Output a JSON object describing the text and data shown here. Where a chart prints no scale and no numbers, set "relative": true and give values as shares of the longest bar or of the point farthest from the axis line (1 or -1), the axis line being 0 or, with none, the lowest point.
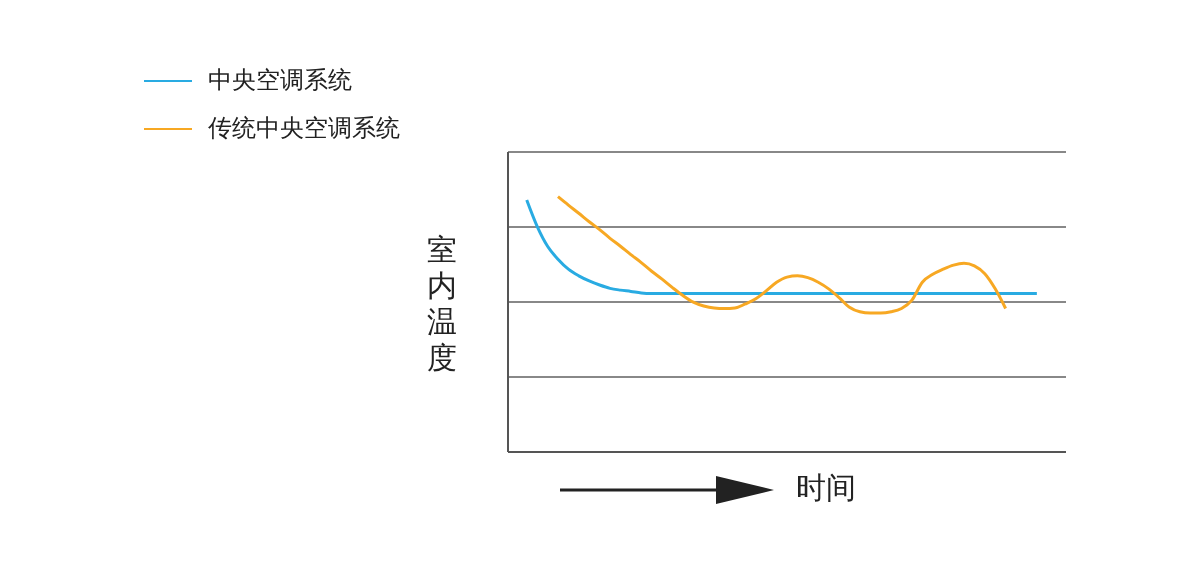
{
  "chart_data": {
    "type": "line",
    "relative": true,
    "xlabel": "时间",
    "ylabel": "室内温度",
    "legend": "top left",
    "grid": "y",
    "marker": "none",
    "categories": [
      null,
      null,
      null,
      null,
      null,
      null,
      null,
      null,
      null,
      null,
      null,
      null,
      null,
      null,
      null,
      null,
      null,
      null,
      null,
      null,
      null,
      null,
      null,
      null,
      null,
      null,
      null,
      null,
      null,
      null,
      null,
      null,
      null,
      null,
      null,
      null,
      null,
      null,
      null,
      null,
      null,
      null,
      null,
      null,
      null,
      null,
      null,
      null,
      null,
      null
    ],
    "series": [
      {
        "name": "中央空调系统",
        "color": "#29abe2",
        "values": [
          0.987,
          0.884,
          0.806,
          0.755,
          0.716,
          0.69,
          0.67,
          0.654,
          0.641,
          0.634,
          0.629,
          0.623,
          0.621,
          0.621,
          0.621,
          0.621,
          0.621,
          0.621,
          0.621,
          0.621,
          0.621,
          0.621,
          0.621,
          0.621,
          0.621,
          0.621,
          0.621,
          0.621,
          0.621,
          0.621,
          0.621,
          0.621,
          0.621,
          0.621,
          0.621,
          0.621,
          0.621,
          0.621,
          0.621,
          0.621,
          0.621,
          0.621,
          0.621,
          0.621,
          0.621,
          0.621,
          0.621,
          0.621,
          0.621,
          0.621
        ]
      },
      {
        "name": "传统中央空调系统",
        "color": "#f7a823",
        "values": [
          null,
          null,
          null,
          1.0,
          0.967,
          0.935,
          0.902,
          0.871,
          0.837,
          0.806,
          0.773,
          0.742,
          0.708,
          0.677,
          0.644,
          0.613,
          0.587,
          0.572,
          0.564,
          0.562,
          0.564,
          0.58,
          0.6,
          0.631,
          0.665,
          0.685,
          0.69,
          0.683,
          0.665,
          0.639,
          0.605,
          0.567,
          0.549,
          0.544,
          0.544,
          0.549,
          0.562,
          0.595,
          0.665,
          0.696,
          0.716,
          0.732,
          0.739,
          0.729,
          0.698,
          0.639,
          0.562,
          null,
          null,
          null
        ]
      }
    ]
  }
}
